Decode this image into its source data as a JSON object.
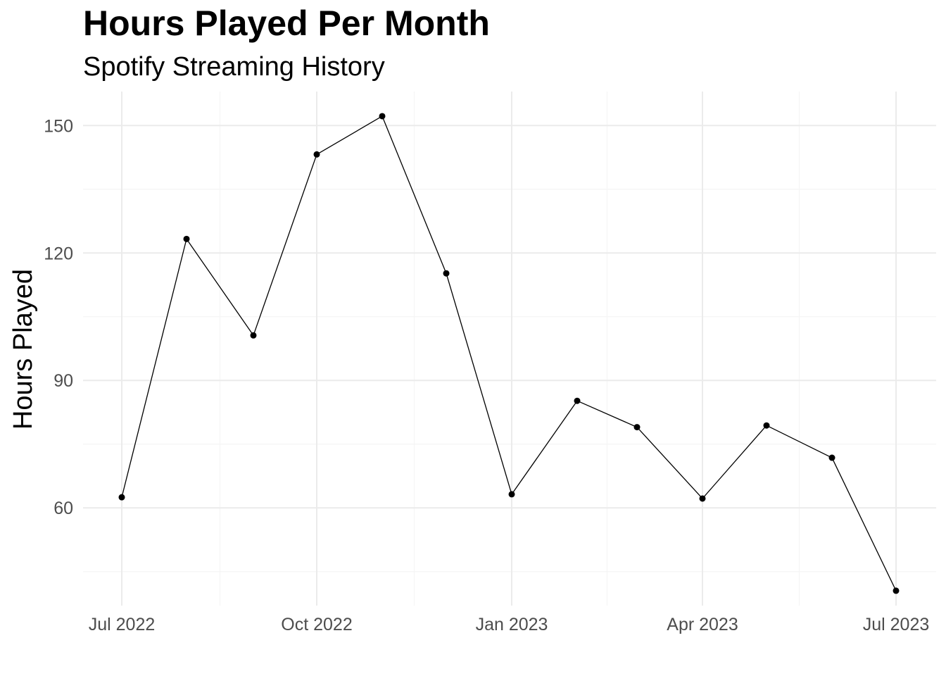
{
  "chart_data": {
    "type": "line",
    "title": "Hours Played Per Month",
    "subtitle": "Spotify Streaming History",
    "xlabel": "",
    "ylabel": "Hours Played",
    "x": [
      "2022-07",
      "2022-08",
      "2022-09",
      "2022-10",
      "2022-11",
      "2022-12",
      "2023-01",
      "2023-02",
      "2023-03",
      "2023-04",
      "2023-05",
      "2023-06",
      "2023-07"
    ],
    "series": [
      {
        "name": "Hours Played",
        "values": [
          62.5,
          123.3,
          100.6,
          143.2,
          152.2,
          115.2,
          63.2,
          85.2,
          79.0,
          62.2,
          79.4,
          71.8,
          40.5
        ]
      }
    ],
    "x_ticks": [
      {
        "label": "Jul 2022",
        "index": 0
      },
      {
        "label": "Oct 2022",
        "index": 3
      },
      {
        "label": "Jan 2023",
        "index": 6
      },
      {
        "label": "Apr 2023",
        "index": 9
      },
      {
        "label": "Jul 2023",
        "index": 12
      }
    ],
    "y_ticks": [
      60,
      90,
      120,
      150
    ],
    "ylim": [
      37,
      158
    ],
    "grid": true,
    "legend": "none",
    "colors": {
      "line": "#000000",
      "point": "#000000",
      "grid_major": "#ebebeb",
      "grid_minor": "#f5f5f5",
      "tick_text": "#4d4d4d"
    }
  }
}
